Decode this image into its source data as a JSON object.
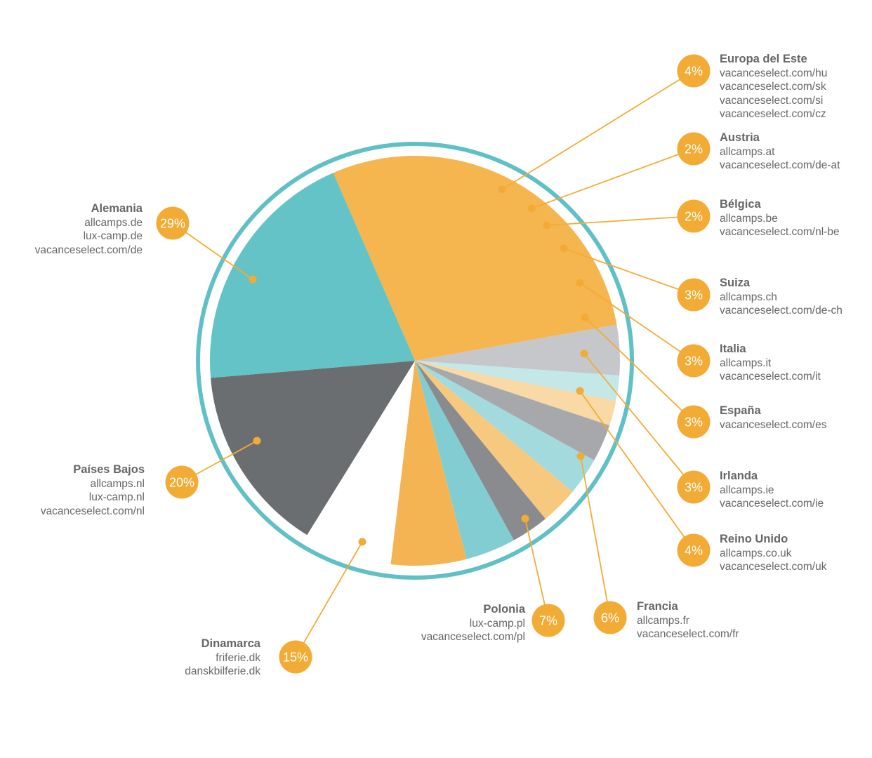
{
  "chart_data": {
    "type": "pie",
    "colors": {
      "ring": "#5fc0c6",
      "leader": "#f2ac36",
      "badge": "#f2ac36"
    },
    "slices": [
      {
        "name": "Alemania",
        "pct": 29,
        "pct_label": "29%",
        "sites": [
          "allcamps.de",
          "lux-camp.de",
          "vacanceselect.com/de"
        ],
        "color": "#f5b54f"
      },
      {
        "name": "Europa del Este",
        "pct": 4,
        "pct_label": "4%",
        "sites": [
          "vacanceselect.com/hu",
          "vacanceselect.com/sk",
          "vacanceselect.com/si",
          "vacanceselect.com/cz"
        ],
        "color": "#c5c7ca"
      },
      {
        "name": "Austria",
        "pct": 2,
        "pct_label": "2%",
        "sites": [
          "allcamps.at",
          "vacanceselect.com/de-at"
        ],
        "color": "#c4e7e8"
      },
      {
        "name": "Bélgica",
        "pct": 2,
        "pct_label": "2%",
        "sites": [
          "allcamps.be",
          "vacanceselect.com/nl-be"
        ],
        "color": "#f9d9a6"
      },
      {
        "name": "Suiza",
        "pct": 3,
        "pct_label": "3%",
        "sites": [
          "allcamps.ch",
          "vacanceselect.com/de-ch"
        ],
        "color": "#a7a8ab"
      },
      {
        "name": "Italia",
        "pct": 3,
        "pct_label": "3%",
        "sites": [
          "allcamps.it",
          "vacanceselect.com/it"
        ],
        "color": "#a3dadd"
      },
      {
        "name": "España",
        "pct": 3,
        "pct_label": "3%",
        "sites": [
          "vacanceselect.com/es"
        ],
        "color": "#f7c97f"
      },
      {
        "name": "Irlanda",
        "pct": 3,
        "pct_label": "3%",
        "sites": [
          "allcamps.ie",
          "vacanceselect.com/ie"
        ],
        "color": "#8a8b8f"
      },
      {
        "name": "Reino Unido",
        "pct": 4,
        "pct_label": "4%",
        "sites": [
          "allcamps.co.uk",
          "vacanceselect.com/uk"
        ],
        "color": "#82cdd2"
      },
      {
        "name": "Francia",
        "pct": 6,
        "pct_label": "6%",
        "sites": [
          "allcamps.fr",
          "vacanceselect.com/fr"
        ],
        "color": "#f5b454"
      },
      {
        "name": "Polonia",
        "pct": 7,
        "pct_label": "7%",
        "sites": [
          "lux-camp.pl",
          "vacanceselect.com/pl"
        ],
        "color": "#ffffff"
      },
      {
        "name": "Dinamarca",
        "pct": 15,
        "pct_label": "15%",
        "sites": [
          "friferie.dk",
          "danskbilferie.dk"
        ],
        "color": "#6b6e71"
      },
      {
        "name": "Países Bajos",
        "pct": 20,
        "pct_label": "20%",
        "sites": [
          "allcamps.nl",
          "lux-camp.nl",
          "vacanceselect.com/nl"
        ],
        "color": "#64c3c6"
      }
    ]
  }
}
